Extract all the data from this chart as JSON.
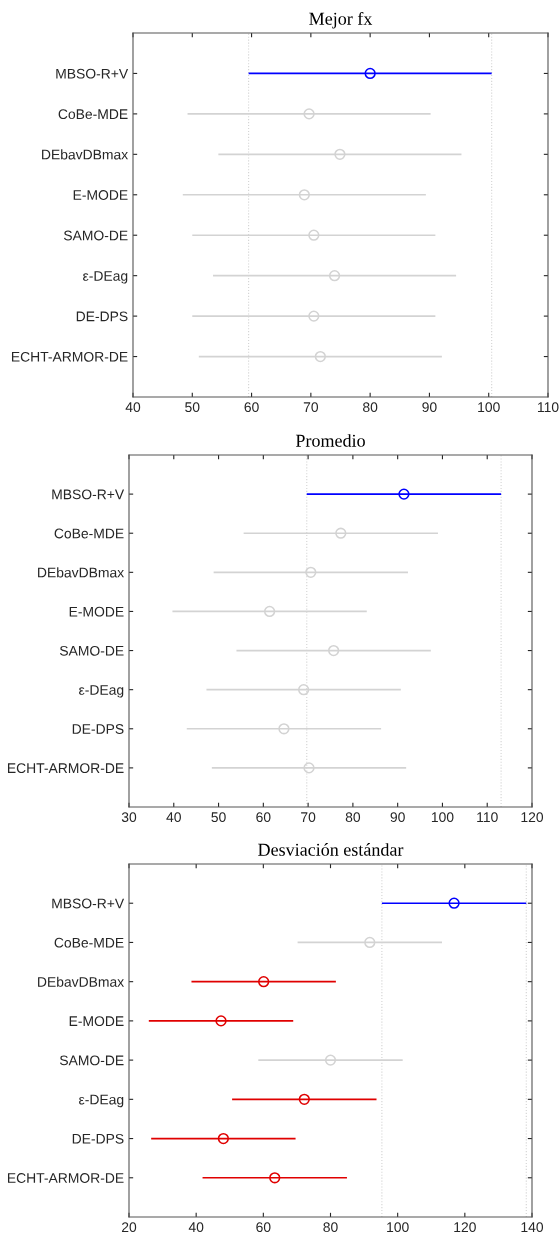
{
  "chart_data": [
    {
      "type": "scatter",
      "orientation": "horizontal",
      "title": "Mejor fx",
      "marker": "circle",
      "grid": false,
      "categories": [
        "MBSO-R+V",
        "CoBe-MDE",
        "DEbavDBmax",
        "E-MODE",
        "SAMO-DE",
        "ε-DEag",
        "DE-DPS",
        "ECHT-ARMOR-DE"
      ],
      "values": [
        80.0,
        69.7,
        74.9,
        68.9,
        70.5,
        74.0,
        70.5,
        71.6
      ],
      "errors": [
        20.5,
        20.5,
        20.5,
        20.5,
        20.5,
        20.5,
        20.5,
        20.5
      ],
      "colors": [
        "#0000ff",
        "#d3d3d3",
        "#d3d3d3",
        "#d3d3d3",
        "#d3d3d3",
        "#d3d3d3",
        "#d3d3d3",
        "#d3d3d3"
      ],
      "xlim": [
        40,
        110
      ],
      "xticks": [
        40,
        50,
        60,
        70,
        80,
        90,
        100,
        110
      ],
      "ref_lines": [
        {
          "axis": "x",
          "value": 59.5,
          "color": "#d3d3d3",
          "line_style": "dotted"
        },
        {
          "axis": "x",
          "value": 100.5,
          "color": "#d3d3d3",
          "line_style": "dotted"
        }
      ]
    },
    {
      "type": "scatter",
      "orientation": "horizontal",
      "title": "Promedio",
      "marker": "circle",
      "grid": false,
      "categories": [
        "MBSO-R+V",
        "CoBe-MDE",
        "DEbavDBmax",
        "E-MODE",
        "SAMO-DE",
        "ε-DEag",
        "DE-DPS",
        "ECHT-ARMOR-DE"
      ],
      "values": [
        91.4,
        77.3,
        70.6,
        61.4,
        75.7,
        69.0,
        64.6,
        70.2
      ],
      "errors": [
        21.7,
        21.7,
        21.7,
        21.7,
        21.7,
        21.7,
        21.7,
        21.7
      ],
      "colors": [
        "#0000ff",
        "#d3d3d3",
        "#d3d3d3",
        "#d3d3d3",
        "#d3d3d3",
        "#d3d3d3",
        "#d3d3d3",
        "#d3d3d3"
      ],
      "xlim": [
        30,
        120
      ],
      "xticks": [
        30,
        40,
        50,
        60,
        70,
        80,
        90,
        100,
        110,
        120
      ],
      "ref_lines": [
        {
          "axis": "x",
          "value": 69.7,
          "color": "#d3d3d3",
          "line_style": "dotted"
        },
        {
          "axis": "x",
          "value": 113.1,
          "color": "#d3d3d3",
          "line_style": "dotted"
        }
      ]
    },
    {
      "type": "scatter",
      "orientation": "horizontal",
      "title": "Desviación estándar",
      "marker": "circle",
      "grid": false,
      "categories": [
        "MBSO-R+V",
        "CoBe-MDE",
        "DEbavDBmax",
        "E-MODE",
        "SAMO-DE",
        "ε-DEag",
        "DE-DPS",
        "ECHT-ARMOR-DE"
      ],
      "values": [
        116.8,
        91.7,
        60.1,
        47.4,
        80.0,
        72.2,
        48.1,
        63.4
      ],
      "errors": [
        21.5,
        21.5,
        21.5,
        21.5,
        21.5,
        21.5,
        21.5,
        21.5
      ],
      "colors": [
        "#0000ff",
        "#d3d3d3",
        "#e00000",
        "#e00000",
        "#d3d3d3",
        "#e00000",
        "#e00000",
        "#e00000"
      ],
      "xlim": [
        20,
        140
      ],
      "xticks": [
        20,
        40,
        60,
        80,
        100,
        120,
        140
      ],
      "ref_lines": [
        {
          "axis": "x",
          "value": 95.3,
          "color": "#d3d3d3",
          "line_style": "dotted"
        },
        {
          "axis": "x",
          "value": 138.3,
          "color": "#d3d3d3",
          "line_style": "dotted"
        }
      ]
    }
  ]
}
